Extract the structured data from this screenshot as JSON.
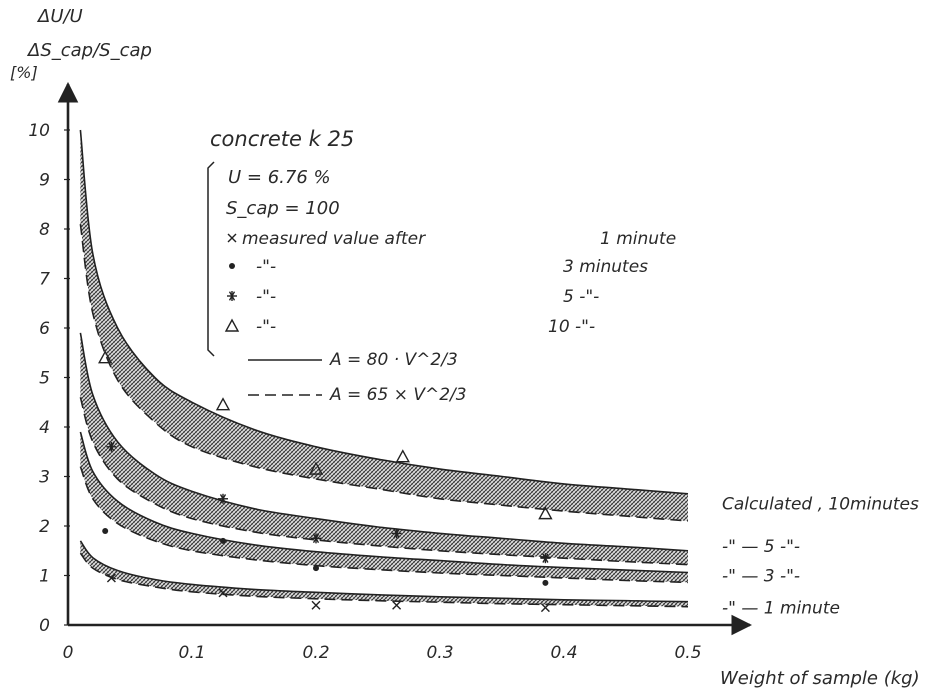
{
  "chart_data": {
    "type": "line",
    "ylabel_lines": [
      "ΔU/U",
      "ΔS_cap/S_cap",
      "[%]"
    ],
    "xlabel": "Weight of sample (kg)",
    "x_ticks": [
      "0",
      "0.1",
      "0.2",
      "0.3",
      "0.4",
      "0.5"
    ],
    "y_ticks": [
      "0",
      "1",
      "2",
      "3",
      "4",
      "5",
      "6",
      "7",
      "8",
      "9",
      "10"
    ],
    "xlim": [
      0,
      0.5
    ],
    "ylim": [
      0,
      10
    ],
    "annotation": {
      "title": "concrete k 25",
      "u_value": "U = 6.76 %",
      "scap_value": "S_cap = 100",
      "markers": [
        {
          "symbol": "x",
          "label": "measured value after",
          "time": "1 minute"
        },
        {
          "symbol": "o",
          "label": "-\"-",
          "time": "3 minutes"
        },
        {
          "symbol": "*",
          "label": "-\"-",
          "time": "5 -\"-"
        },
        {
          "symbol": "triangle",
          "label": "-\"-",
          "time": "10 -\"-"
        }
      ],
      "line_solid": "A = 80 · V^2/3",
      "line_dashed": "A = 65 × V^2/3"
    },
    "series": [
      {
        "name": "Calculated, 10minutes",
        "marker": "triangle",
        "upper": {
          "x": [
            0.01,
            0.02,
            0.04,
            0.07,
            0.1,
            0.15,
            0.2,
            0.25,
            0.3,
            0.35,
            0.4,
            0.45,
            0.5
          ],
          "y": [
            10,
            7.5,
            6.0,
            5.0,
            4.5,
            3.95,
            3.6,
            3.35,
            3.15,
            3.0,
            2.85,
            2.75,
            2.65
          ]
        },
        "lower": {
          "x": [
            0.01,
            0.02,
            0.04,
            0.07,
            0.1,
            0.15,
            0.2,
            0.25,
            0.3,
            0.35,
            0.4,
            0.45,
            0.5
          ],
          "y": [
            8.1,
            6.3,
            4.95,
            4.1,
            3.6,
            3.2,
            2.95,
            2.75,
            2.55,
            2.42,
            2.3,
            2.2,
            2.1
          ]
        },
        "measured": {
          "x": [
            0.03,
            0.125,
            0.2,
            0.27,
            0.385
          ],
          "y": [
            5.4,
            4.45,
            3.15,
            3.4,
            2.25
          ]
        }
      },
      {
        "name": "5 -\"-",
        "marker": "*",
        "upper": {
          "x": [
            0.01,
            0.02,
            0.04,
            0.07,
            0.1,
            0.15,
            0.2,
            0.25,
            0.3,
            0.35,
            0.4,
            0.45,
            0.5
          ],
          "y": [
            5.9,
            4.65,
            3.7,
            3.05,
            2.7,
            2.35,
            2.15,
            1.98,
            1.85,
            1.75,
            1.65,
            1.58,
            1.5
          ]
        },
        "lower": {
          "x": [
            0.01,
            0.02,
            0.04,
            0.07,
            0.1,
            0.15,
            0.2,
            0.25,
            0.3,
            0.35,
            0.4,
            0.45,
            0.5
          ],
          "y": [
            4.6,
            3.7,
            2.95,
            2.45,
            2.15,
            1.88,
            1.72,
            1.6,
            1.5,
            1.42,
            1.35,
            1.28,
            1.22
          ]
        },
        "measured": {
          "x": [
            0.035,
            0.125,
            0.2,
            0.265,
            0.385
          ],
          "y": [
            3.6,
            2.55,
            1.75,
            1.85,
            1.35
          ]
        }
      },
      {
        "name": "3 -\"-",
        "marker": "o",
        "upper": {
          "x": [
            0.01,
            0.02,
            0.04,
            0.07,
            0.1,
            0.15,
            0.2,
            0.25,
            0.3,
            0.35,
            0.4,
            0.45,
            0.5
          ],
          "y": [
            3.9,
            3.1,
            2.5,
            2.08,
            1.85,
            1.62,
            1.48,
            1.38,
            1.3,
            1.22,
            1.16,
            1.11,
            1.06
          ]
        },
        "lower": {
          "x": [
            0.01,
            0.02,
            0.04,
            0.07,
            0.1,
            0.15,
            0.2,
            0.25,
            0.3,
            0.35,
            0.4,
            0.45,
            0.5
          ],
          "y": [
            3.2,
            2.55,
            2.05,
            1.7,
            1.5,
            1.32,
            1.2,
            1.12,
            1.05,
            1.0,
            0.95,
            0.9,
            0.86
          ]
        },
        "measured": {
          "x": [
            0.03,
            0.125,
            0.2,
            0.385
          ],
          "y": [
            1.9,
            1.7,
            1.15,
            0.85
          ]
        }
      },
      {
        "name": "1 minute",
        "marker": "x",
        "upper": {
          "x": [
            0.01,
            0.02,
            0.04,
            0.07,
            0.1,
            0.15,
            0.2,
            0.25,
            0.3,
            0.35,
            0.4,
            0.45,
            0.5
          ],
          "y": [
            1.7,
            1.36,
            1.1,
            0.92,
            0.82,
            0.72,
            0.66,
            0.61,
            0.57,
            0.54,
            0.51,
            0.49,
            0.47
          ]
        },
        "lower": {
          "x": [
            0.01,
            0.02,
            0.04,
            0.07,
            0.1,
            0.15,
            0.2,
            0.25,
            0.3,
            0.35,
            0.4,
            0.45,
            0.5
          ],
          "y": [
            1.45,
            1.15,
            0.92,
            0.77,
            0.67,
            0.58,
            0.53,
            0.49,
            0.46,
            0.43,
            0.41,
            0.39,
            0.37
          ]
        },
        "measured": {
          "x": [
            0.035,
            0.125,
            0.2,
            0.265,
            0.385
          ],
          "y": [
            0.95,
            0.65,
            0.4,
            0.4,
            0.35
          ]
        }
      }
    ],
    "right_labels": [
      {
        "text": "Calculated , 10minutes",
        "y": 2.45
      },
      {
        "text": "-\" —        5 -\"-",
        "y": 1.6
      },
      {
        "text": "-\" —        3 -\"-",
        "y": 1.0
      },
      {
        "text": "-\" —        1 minute",
        "y": 0.35
      }
    ]
  }
}
